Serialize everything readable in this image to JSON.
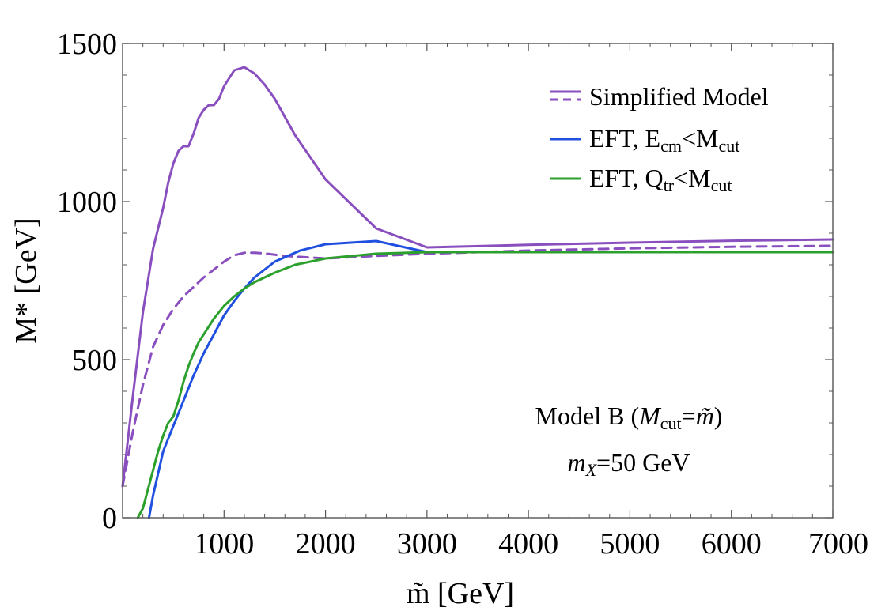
{
  "chart_data": {
    "type": "line",
    "title": "",
    "xlabel": "m̃ [GeV]",
    "ylabel": "M* [GeV]",
    "xlim": [
      0,
      7000
    ],
    "ylim": [
      0,
      1500
    ],
    "x_ticks": [
      1000,
      2000,
      3000,
      4000,
      5000,
      6000,
      7000
    ],
    "y_ticks": [
      0,
      500,
      1000,
      1500
    ],
    "legend_position": "top-right",
    "legend": {
      "simplified": "Simplified Model",
      "ecm_prefix": "EFT, E",
      "ecm_sub": "cm",
      "ecm_mid": "<M",
      "ecm_sub2": "cut",
      "qtr_prefix": "EFT, Q",
      "qtr_sub": "tr",
      "qtr_mid": "<M",
      "qtr_sub2": "cut"
    },
    "annotations": {
      "model_prefix": "Model B (",
      "model_m": "M",
      "model_sub": "cut",
      "model_eq": "=",
      "model_mtilde": "m̃",
      "model_close": ")",
      "mx_m": "m",
      "mx_sub": "X",
      "mx_rest": "=50 GeV"
    },
    "series": [
      {
        "name": "Simplified Model (solid)",
        "color": "#8a4fbf",
        "dash": "solid",
        "x": [
          0,
          100,
          200,
          300,
          400,
          450,
          500,
          550,
          600,
          650,
          700,
          750,
          800,
          850,
          900,
          950,
          1000,
          1100,
          1200,
          1300,
          1400,
          1500,
          1700,
          2000,
          2500,
          3000,
          4000,
          5000,
          6000,
          7000
        ],
        "y": [
          100,
          380,
          650,
          850,
          980,
          1060,
          1120,
          1160,
          1175,
          1175,
          1215,
          1265,
          1290,
          1305,
          1305,
          1325,
          1365,
          1415,
          1425,
          1405,
          1370,
          1325,
          1210,
          1070,
          915,
          855,
          863,
          870,
          876,
          880
        ]
      },
      {
        "name": "Simplified Model (dashed)",
        "color": "#8a4fbf",
        "dash": "dashed",
        "x": [
          0,
          100,
          200,
          300,
          400,
          500,
          600,
          700,
          800,
          900,
          1000,
          1100,
          1200,
          1300,
          1400,
          1600,
          2000,
          2500,
          3000,
          4000,
          5000,
          6000,
          7000
        ],
        "y": [
          100,
          270,
          420,
          540,
          610,
          660,
          700,
          730,
          760,
          785,
          810,
          830,
          838,
          838,
          836,
          828,
          820,
          828,
          835,
          845,
          852,
          857,
          860
        ]
      },
      {
        "name": "EFT, Ecm<Mcut",
        "color": "#2050e0",
        "dash": "solid",
        "x": [
          260,
          300,
          350,
          400,
          500,
          600,
          700,
          800,
          900,
          1000,
          1100,
          1200,
          1300,
          1500,
          1750,
          2000,
          2500,
          3000,
          4000,
          5000,
          6000,
          7000
        ],
        "y": [
          0,
          70,
          140,
          210,
          290,
          370,
          450,
          520,
          580,
          640,
          685,
          725,
          760,
          810,
          845,
          865,
          875,
          840,
          840,
          840,
          840,
          840
        ]
      },
      {
        "name": "EFT, Qtr<Mcut",
        "color": "#2ca02c",
        "dash": "solid",
        "x": [
          150,
          200,
          250,
          300,
          350,
          400,
          450,
          500,
          550,
          600,
          650,
          700,
          750,
          800,
          900,
          1000,
          1100,
          1200,
          1300,
          1400,
          1500,
          1700,
          2000,
          2500,
          3000,
          4000,
          5000,
          6000,
          7000
        ],
        "y": [
          0,
          30,
          90,
          150,
          210,
          260,
          300,
          320,
          370,
          430,
          480,
          520,
          555,
          580,
          630,
          670,
          700,
          725,
          745,
          760,
          775,
          800,
          820,
          835,
          840,
          840,
          840,
          840,
          840
        ]
      }
    ]
  }
}
